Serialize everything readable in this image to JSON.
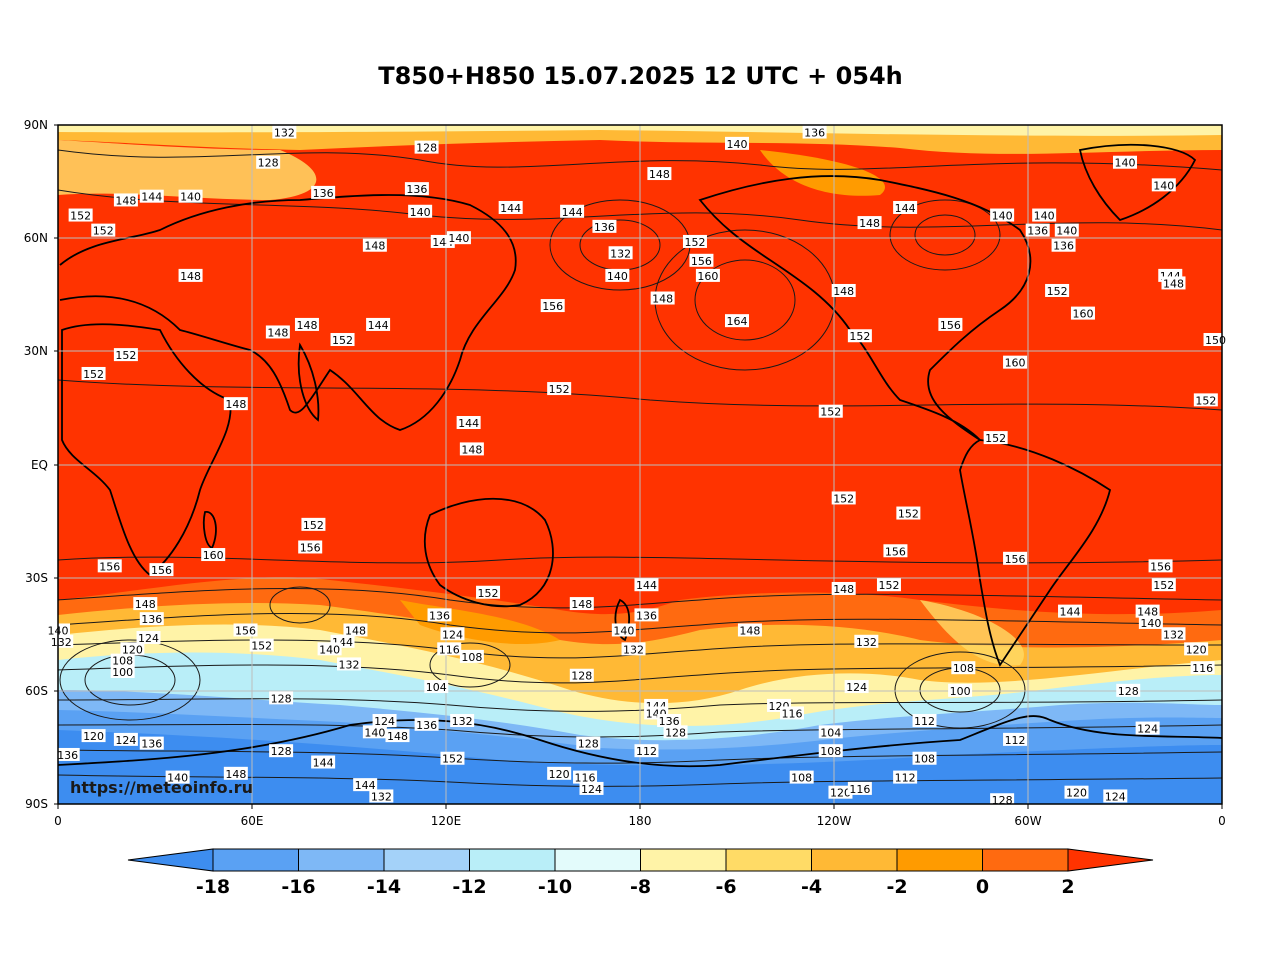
{
  "title": "T850+H850 15.07.2025 12 UTC + 054h",
  "watermark": "https://meteoinfo.ru",
  "lat_labels": [
    "90N",
    "60N",
    "30N",
    "EQ",
    "30S",
    "60S",
    "90S"
  ],
  "lon_labels": [
    "0",
    "60E",
    "120E",
    "180",
    "120W",
    "60W",
    "0"
  ],
  "colorbar": {
    "ticks": [
      "-18",
      "-16",
      "-14",
      "-12",
      "-10",
      "-8",
      "-6",
      "-4",
      "-2",
      "0",
      "2"
    ],
    "colors": [
      "#3d8df0",
      "#5aa1f3",
      "#7eb8f6",
      "#a4d2f9",
      "#b9eef8",
      "#e3fbfb",
      "#fff3a7",
      "#ffdb66",
      "#ffb935",
      "#ff9b00",
      "#ff6a10",
      "#ff3300"
    ]
  },
  "contour_labels": [
    {
      "v": "132",
      "lon": 70,
      "lat": 88
    },
    {
      "v": "128",
      "lon": 114,
      "lat": 84
    },
    {
      "v": "140",
      "lon": 210,
      "lat": 85
    },
    {
      "v": "136",
      "lon": 234,
      "lat": 88
    },
    {
      "v": "128",
      "lon": 65,
      "lat": 80
    },
    {
      "v": "148",
      "lon": 186,
      "lat": 77
    },
    {
      "v": "140",
      "lon": 330,
      "lat": 80
    },
    {
      "v": "140",
      "lon": 342,
      "lat": 74
    },
    {
      "v": "152",
      "lon": 7,
      "lat": 66
    },
    {
      "v": "148",
      "lon": 21,
      "lat": 70
    },
    {
      "v": "144",
      "lon": 29,
      "lat": 71
    },
    {
      "v": "140",
      "lon": 41,
      "lat": 71
    },
    {
      "v": "136",
      "lon": 82,
      "lat": 72
    },
    {
      "v": "136",
      "lon": 111,
      "lat": 73
    },
    {
      "v": "140",
      "lon": 112,
      "lat": 67
    },
    {
      "v": "144",
      "lon": 140,
      "lat": 68
    },
    {
      "v": "144",
      "lon": 159,
      "lat": 67
    },
    {
      "v": "148",
      "lon": 251,
      "lat": 64
    },
    {
      "v": "144",
      "lon": 262,
      "lat": 68
    },
    {
      "v": "140",
      "lon": 305,
      "lat": 66
    },
    {
      "v": "140",
      "lon": 292,
      "lat": 66
    },
    {
      "v": "152",
      "lon": 14,
      "lat": 62
    },
    {
      "v": "148",
      "lon": 98,
      "lat": 58
    },
    {
      "v": "144",
      "lon": 119,
      "lat": 59
    },
    {
      "v": "140",
      "lon": 124,
      "lat": 60
    },
    {
      "v": "136",
      "lon": 169,
      "lat": 63
    },
    {
      "v": "132",
      "lon": 174,
      "lat": 56
    },
    {
      "v": "140",
      "lon": 173,
      "lat": 50
    },
    {
      "v": "152",
      "lon": 197,
      "lat": 59
    },
    {
      "v": "156",
      "lon": 199,
      "lat": 54
    },
    {
      "v": "160",
      "lon": 201,
      "lat": 50
    },
    {
      "v": "136",
      "lon": 303,
      "lat": 62
    },
    {
      "v": "136",
      "lon": 311,
      "lat": 58
    },
    {
      "v": "140",
      "lon": 312,
      "lat": 62
    },
    {
      "v": "144",
      "lon": 344,
      "lat": 50
    },
    {
      "v": "148",
      "lon": 345,
      "lat": 48
    },
    {
      "v": "148",
      "lon": 41,
      "lat": 50
    },
    {
      "v": "148",
      "lon": 187,
      "lat": 44
    },
    {
      "v": "148",
      "lon": 243,
      "lat": 46
    },
    {
      "v": "152",
      "lon": 309,
      "lat": 46
    },
    {
      "v": "156",
      "lon": 153,
      "lat": 42
    },
    {
      "v": "164",
      "lon": 210,
      "lat": 38
    },
    {
      "v": "160",
      "lon": 317,
      "lat": 40
    },
    {
      "v": "148",
      "lon": 68,
      "lat": 35
    },
    {
      "v": "148",
      "lon": 77,
      "lat": 37
    },
    {
      "v": "144",
      "lon": 99,
      "lat": 37
    },
    {
      "v": "152",
      "lon": 88,
      "lat": 33
    },
    {
      "v": "152",
      "lon": 248,
      "lat": 34
    },
    {
      "v": "156",
      "lon": 276,
      "lat": 37
    },
    {
      "v": "152",
      "lon": 21,
      "lat": 29
    },
    {
      "v": "152",
      "lon": 11,
      "lat": 24
    },
    {
      "v": "150",
      "lon": 358,
      "lat": 33
    },
    {
      "v": "160",
      "lon": 296,
      "lat": 27
    },
    {
      "v": "152",
      "lon": 155,
      "lat": 20
    },
    {
      "v": "148",
      "lon": 55,
      "lat": 16
    },
    {
      "v": "144",
      "lon": 127,
      "lat": 11
    },
    {
      "v": "148",
      "lon": 128,
      "lat": 4
    },
    {
      "v": "152",
      "lon": 239,
      "lat": 14
    },
    {
      "v": "152",
      "lon": 290,
      "lat": 7
    },
    {
      "v": "152",
      "lon": 355,
      "lat": 17
    },
    {
      "v": "152",
      "lon": 243,
      "lat": -9
    },
    {
      "v": "152",
      "lon": 263,
      "lat": -13
    },
    {
      "v": "152",
      "lon": 79,
      "lat": -16
    },
    {
      "v": "156",
      "lon": 78,
      "lat": -22
    },
    {
      "v": "160",
      "lon": 48,
      "lat": -24
    },
    {
      "v": "156",
      "lon": 16,
      "lat": -27
    },
    {
      "v": "156",
      "lon": 32,
      "lat": -28
    },
    {
      "v": "156",
      "lon": 259,
      "lat": -23
    },
    {
      "v": "156",
      "lon": 296,
      "lat": -25
    },
    {
      "v": "156",
      "lon": 341,
      "lat": -27
    },
    {
      "v": "152",
      "lon": 257,
      "lat": -32
    },
    {
      "v": "152",
      "lon": 342,
      "lat": -32
    },
    {
      "v": "144",
      "lon": 182,
      "lat": -32
    },
    {
      "v": "152",
      "lon": 133,
      "lat": -34
    },
    {
      "v": "148",
      "lon": 243,
      "lat": -33
    },
    {
      "v": "148",
      "lon": 27,
      "lat": -37
    },
    {
      "v": "148",
      "lon": 162,
      "lat": -37
    },
    {
      "v": "136",
      "lon": 182,
      "lat": -40
    },
    {
      "v": "144",
      "lon": 313,
      "lat": -39
    },
    {
      "v": "148",
      "lon": 337,
      "lat": -39
    },
    {
      "v": "140",
      "lon": 338,
      "lat": -42
    },
    {
      "v": "136",
      "lon": 29,
      "lat": -41
    },
    {
      "v": "136",
      "lon": 118,
      "lat": -40
    },
    {
      "v": "132",
      "lon": 1,
      "lat": -47
    },
    {
      "v": "140",
      "lon": 0,
      "lat": -44
    },
    {
      "v": "124",
      "lon": 28,
      "lat": -46
    },
    {
      "v": "120",
      "lon": 23,
      "lat": -49
    },
    {
      "v": "156",
      "lon": 58,
      "lat": -44
    },
    {
      "v": "152",
      "lon": 63,
      "lat": -48
    },
    {
      "v": "148",
      "lon": 92,
      "lat": -44
    },
    {
      "v": "144",
      "lon": 88,
      "lat": -47
    },
    {
      "v": "140",
      "lon": 84,
      "lat": -49
    },
    {
      "v": "124",
      "lon": 122,
      "lat": -45
    },
    {
      "v": "116",
      "lon": 121,
      "lat": -49
    },
    {
      "v": "108",
      "lon": 128,
      "lat": -51
    },
    {
      "v": "140",
      "lon": 175,
      "lat": -44
    },
    {
      "v": "132",
      "lon": 178,
      "lat": -49
    },
    {
      "v": "148",
      "lon": 214,
      "lat": -44
    },
    {
      "v": "132",
      "lon": 250,
      "lat": -47
    },
    {
      "v": "132",
      "lon": 345,
      "lat": -45
    },
    {
      "v": "120",
      "lon": 352,
      "lat": -49
    },
    {
      "v": "116",
      "lon": 354,
      "lat": -54
    },
    {
      "v": "132",
      "lon": 90,
      "lat": -53
    },
    {
      "v": "108",
      "lon": 20,
      "lat": -52
    },
    {
      "v": "100",
      "lon": 20,
      "lat": -55
    },
    {
      "v": "128",
      "lon": 162,
      "lat": -56
    },
    {
      "v": "104",
      "lon": 117,
      "lat": -59
    },
    {
      "v": "108",
      "lon": 280,
      "lat": -54
    },
    {
      "v": "100",
      "lon": 279,
      "lat": -60
    },
    {
      "v": "124",
      "lon": 247,
      "lat": -59
    },
    {
      "v": "128",
      "lon": 331,
      "lat": -60
    },
    {
      "v": "128",
      "lon": 69,
      "lat": -62
    },
    {
      "v": "144",
      "lon": 185,
      "lat": -64
    },
    {
      "v": "140",
      "lon": 185,
      "lat": -66
    },
    {
      "v": "136",
      "lon": 189,
      "lat": -68
    },
    {
      "v": "128",
      "lon": 191,
      "lat": -71
    },
    {
      "v": "120",
      "lon": 223,
      "lat": -64
    },
    {
      "v": "116",
      "lon": 227,
      "lat": -66
    },
    {
      "v": "112",
      "lon": 268,
      "lat": -68
    },
    {
      "v": "124",
      "lon": 337,
      "lat": -70
    },
    {
      "v": "124",
      "lon": 101,
      "lat": -68
    },
    {
      "v": "140",
      "lon": 98,
      "lat": -71
    },
    {
      "v": "148",
      "lon": 105,
      "lat": -72
    },
    {
      "v": "136",
      "lon": 114,
      "lat": -69
    },
    {
      "v": "132",
      "lon": 125,
      "lat": -68
    },
    {
      "v": "120",
      "lon": 11,
      "lat": -72
    },
    {
      "v": "124",
      "lon": 21,
      "lat": -73
    },
    {
      "v": "136",
      "lon": 29,
      "lat": -74
    },
    {
      "v": "104",
      "lon": 239,
      "lat": -71
    },
    {
      "v": "108",
      "lon": 239,
      "lat": -76
    },
    {
      "v": "112",
      "lon": 296,
      "lat": -73
    },
    {
      "v": "136",
      "lon": 3,
      "lat": -77
    },
    {
      "v": "128",
      "lon": 69,
      "lat": -76
    },
    {
      "v": "128",
      "lon": 164,
      "lat": -74
    },
    {
      "v": "112",
      "lon": 182,
      "lat": -76
    },
    {
      "v": "144",
      "lon": 82,
      "lat": -79
    },
    {
      "v": "152",
      "lon": 122,
      "lat": -78
    },
    {
      "v": "108",
      "lon": 268,
      "lat": -78
    },
    {
      "v": "148",
      "lon": 55,
      "lat": -82
    },
    {
      "v": "140",
      "lon": 37,
      "lat": -83
    },
    {
      "v": "120",
      "lon": 155,
      "lat": -82
    },
    {
      "v": "116",
      "lon": 163,
      "lat": -83
    },
    {
      "v": "124",
      "lon": 165,
      "lat": -86
    },
    {
      "v": "108",
      "lon": 230,
      "lat": -83
    },
    {
      "v": "112",
      "lon": 262,
      "lat": -83
    },
    {
      "v": "144",
      "lon": 95,
      "lat": -85
    },
    {
      "v": "132",
      "lon": 100,
      "lat": -88
    },
    {
      "v": "120",
      "lon": 242,
      "lat": -87
    },
    {
      "v": "116",
      "lon": 248,
      "lat": -86
    },
    {
      "v": "120",
      "lon": 315,
      "lat": -87
    },
    {
      "v": "124",
      "lon": 327,
      "lat": -88
    },
    {
      "v": "128",
      "lon": 292,
      "lat": -89
    }
  ]
}
